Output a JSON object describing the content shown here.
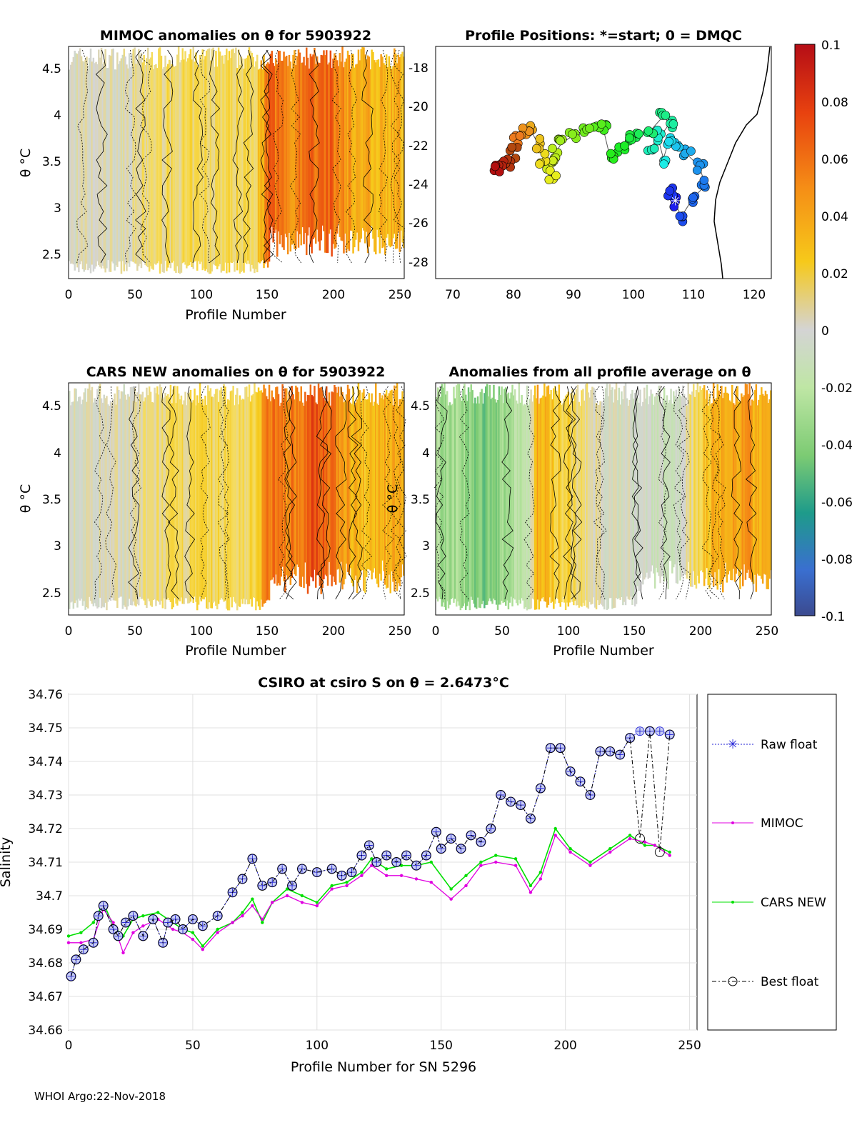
{
  "footer": "WHOI Argo:22-Nov-2018",
  "colorbar": {
    "ticks": [
      "0.1",
      "0.08",
      "0.06",
      "0.04",
      "0.02",
      "0",
      "-0.02",
      "-0.04",
      "-0.06",
      "-0.08",
      "-0.1"
    ],
    "range": [
      -0.1,
      0.1
    ]
  },
  "panels": {
    "mimoc": {
      "title": "MIMOC anomalies on θ  for 5903922",
      "ylabel": "θ °C",
      "xlabel": "Profile Number",
      "xticks": [
        "0",
        "50",
        "100",
        "150",
        "200",
        "250"
      ],
      "yticks": [
        "4.5",
        "4",
        "3.5",
        "3",
        "2.5"
      ]
    },
    "positions": {
      "title": "Profile Positions: *=start; 0 = DMQC",
      "xticks": [
        "70",
        "80",
        "90",
        "100",
        "110",
        "120"
      ],
      "yticks": [
        "-18",
        "-20",
        "-22",
        "-24",
        "-26",
        "-28"
      ]
    },
    "cars": {
      "title": "CARS NEW anomalies on θ for 5903922",
      "ylabel": "θ °C",
      "xlabel": "Profile Number",
      "xticks": [
        "0",
        "50",
        "100",
        "150",
        "200",
        "250"
      ],
      "yticks": [
        "4.5",
        "4",
        "3.5",
        "3",
        "2.5"
      ]
    },
    "avg": {
      "title": "Anomalies from all profile average on θ",
      "ylabel": "θ °C",
      "xlabel": "Profile Number",
      "xticks": [
        "0",
        "50",
        "100",
        "150",
        "200",
        "250"
      ],
      "yticks": [
        "4.5",
        "4",
        "3.5",
        "3",
        "2.5"
      ]
    }
  },
  "colors": {
    "raw": "#1f1fd6",
    "mimoc": "#e000e0",
    "cars": "#00e000",
    "best": "#000000"
  },
  "chart_data": [
    {
      "type": "heatmap",
      "title": "MIMOC anomalies on θ  for 5903922",
      "xlabel": "Profile Number",
      "ylabel": "θ °C",
      "xlim": [
        0,
        253
      ],
      "ylim": [
        2.25,
        4.75
      ],
      "column_anomaly_profile": [
        [
          0,
          0.0
        ],
        [
          40,
          0.003
        ],
        [
          60,
          0.015
        ],
        [
          100,
          0.018
        ],
        [
          140,
          0.022
        ],
        [
          150,
          0.06
        ],
        [
          170,
          0.05
        ],
        [
          190,
          0.065
        ],
        [
          215,
          0.04
        ],
        [
          253,
          0.035
        ]
      ]
    },
    {
      "type": "scatter",
      "title": "Profile Positions: *=start; 0 = DMQC",
      "xlim": [
        67,
        123
      ],
      "ylim": [
        -29,
        -17
      ],
      "track": [
        [
          107,
          -25
        ],
        [
          106,
          -24.5
        ],
        [
          108,
          -25.8
        ],
        [
          110,
          -24.8
        ],
        [
          112,
          -24.2
        ],
        [
          111,
          -23.2
        ],
        [
          109,
          -22.6
        ],
        [
          107.5,
          -22.2
        ],
        [
          106,
          -21.8
        ],
        [
          105,
          -22.8
        ],
        [
          104,
          -21.6
        ],
        [
          103,
          -22.3
        ],
        [
          106,
          -21.0
        ],
        [
          105,
          -20.6
        ],
        [
          103,
          -21.3
        ],
        [
          101,
          -21.6
        ],
        [
          99,
          -21.8
        ],
        [
          98,
          -22.2
        ],
        [
          96,
          -22.6
        ],
        [
          95,
          -21.3
        ],
        [
          94,
          -21.0
        ],
        [
          92,
          -21.3
        ],
        [
          90,
          -21.6
        ],
        [
          88,
          -22.0
        ],
        [
          87,
          -22.5
        ],
        [
          86,
          -23.2
        ],
        [
          86.5,
          -23.6
        ],
        [
          85,
          -22.8
        ],
        [
          84,
          -22.0
        ],
        [
          83,
          -21.4
        ],
        [
          82,
          -21.3
        ],
        [
          80.5,
          -21.9
        ],
        [
          80,
          -22.5
        ],
        [
          79,
          -23.1
        ],
        [
          78,
          -23.0
        ],
        [
          77,
          -23.2
        ]
      ],
      "start": [
        107,
        -25
      ]
    },
    {
      "type": "heatmap",
      "title": "CARS NEW anomalies on θ for 5903922",
      "xlabel": "Profile Number",
      "ylabel": "θ °C",
      "xlim": [
        0,
        253
      ],
      "ylim": [
        2.25,
        4.75
      ],
      "column_anomaly_profile": [
        [
          0,
          0.0
        ],
        [
          40,
          0.002
        ],
        [
          60,
          0.012
        ],
        [
          100,
          0.02
        ],
        [
          140,
          0.02
        ],
        [
          150,
          0.06
        ],
        [
          165,
          0.05
        ],
        [
          185,
          0.07
        ],
        [
          215,
          0.035
        ],
        [
          253,
          0.04
        ]
      ]
    },
    {
      "type": "heatmap",
      "title": "Anomalies from all profile average on θ",
      "xlabel": "Profile Number",
      "ylabel": "θ °C",
      "xlim": [
        0,
        253
      ],
      "ylim": [
        2.25,
        4.75
      ],
      "column_anomaly_profile": [
        [
          0,
          -0.025
        ],
        [
          40,
          -0.04
        ],
        [
          70,
          -0.012
        ],
        [
          75,
          0.04
        ],
        [
          130,
          0.0
        ],
        [
          180,
          -0.01
        ],
        [
          195,
          0.02
        ],
        [
          205,
          0.035
        ],
        [
          230,
          0.045
        ],
        [
          253,
          0.035
        ]
      ]
    },
    {
      "type": "line",
      "title": "CSIRO at csiro S on θ = 2.6473°C",
      "xlabel": "Profile Number for SN 5296",
      "ylabel": "Salinity",
      "xlim": [
        0,
        253
      ],
      "ylim": [
        34.66,
        34.76
      ],
      "xticks": [
        "0",
        "50",
        "100",
        "150",
        "200",
        "250"
      ],
      "yticks": [
        "34.66",
        "34.67",
        "34.68",
        "34.69",
        "34.7",
        "34.71",
        "34.72",
        "34.73",
        "34.74",
        "34.75",
        "34.76"
      ],
      "series": [
        {
          "name": "Raw float",
          "x": [
            1,
            3,
            6,
            10,
            12,
            14,
            18,
            20,
            23,
            26,
            30,
            34,
            38,
            40,
            43,
            46,
            50,
            54,
            60,
            66,
            70,
            74,
            78,
            82,
            86,
            90,
            94,
            100,
            106,
            110,
            114,
            118,
            121,
            124,
            128,
            132,
            136,
            140,
            144,
            148,
            150,
            154,
            158,
            162,
            166,
            170,
            174,
            178,
            182,
            186,
            190,
            194,
            198,
            202,
            206,
            210,
            214,
            218,
            222,
            226,
            230,
            234,
            238,
            242
          ],
          "values": [
            34.676,
            34.681,
            34.684,
            34.686,
            34.694,
            34.697,
            34.69,
            34.688,
            34.692,
            34.694,
            34.688,
            34.693,
            34.686,
            34.692,
            34.693,
            34.69,
            34.693,
            34.691,
            34.694,
            34.701,
            34.705,
            34.711,
            34.703,
            34.704,
            34.708,
            34.703,
            34.708,
            34.707,
            34.708,
            34.706,
            34.707,
            34.712,
            34.715,
            34.71,
            34.712,
            34.71,
            34.712,
            34.709,
            34.712,
            34.719,
            34.714,
            34.717,
            34.714,
            34.718,
            34.716,
            34.72,
            34.73,
            34.728,
            34.727,
            34.723,
            34.732,
            34.744,
            34.744,
            34.737,
            34.734,
            34.73,
            34.743,
            34.743,
            34.742,
            34.747,
            34.749,
            34.749,
            34.749,
            34.748
          ]
        },
        {
          "name": "MIMOC",
          "x": [
            0,
            5,
            10,
            14,
            18,
            22,
            26,
            30,
            36,
            42,
            46,
            50,
            54,
            60,
            66,
            70,
            74,
            78,
            82,
            88,
            94,
            100,
            106,
            112,
            118,
            122,
            128,
            134,
            140,
            146,
            154,
            160,
            166,
            172,
            180,
            186,
            190,
            196,
            202,
            210,
            218,
            226,
            232,
            236,
            242
          ],
          "values": [
            34.686,
            34.686,
            34.687,
            34.696,
            34.692,
            34.683,
            34.689,
            34.691,
            34.693,
            34.69,
            34.689,
            34.687,
            34.684,
            34.689,
            34.692,
            34.694,
            34.697,
            34.693,
            34.698,
            34.7,
            34.698,
            34.697,
            34.702,
            34.703,
            34.706,
            34.709,
            34.706,
            34.706,
            34.705,
            34.704,
            34.699,
            34.703,
            34.709,
            34.71,
            34.709,
            34.701,
            34.705,
            34.718,
            34.713,
            34.709,
            34.713,
            34.717,
            34.716,
            34.715,
            34.712
          ]
        },
        {
          "name": "CARS NEW",
          "x": [
            0,
            5,
            10,
            14,
            18,
            22,
            26,
            30,
            36,
            42,
            46,
            50,
            54,
            60,
            66,
            70,
            74,
            78,
            82,
            88,
            94,
            100,
            106,
            112,
            118,
            122,
            128,
            134,
            140,
            146,
            154,
            160,
            166,
            172,
            180,
            186,
            190,
            196,
            202,
            210,
            218,
            226,
            232,
            236,
            242
          ],
          "values": [
            34.688,
            34.689,
            34.692,
            34.698,
            34.691,
            34.688,
            34.693,
            34.694,
            34.695,
            34.692,
            34.69,
            34.689,
            34.685,
            34.69,
            34.692,
            34.695,
            34.699,
            34.692,
            34.698,
            34.702,
            34.7,
            34.698,
            34.703,
            34.704,
            34.707,
            34.711,
            34.708,
            34.709,
            34.709,
            34.71,
            34.702,
            34.706,
            34.71,
            34.712,
            34.711,
            34.703,
            34.707,
            34.72,
            34.714,
            34.71,
            34.714,
            34.718,
            34.715,
            34.715,
            34.713
          ]
        },
        {
          "name": "Best float",
          "x": [
            1,
            3,
            6,
            10,
            12,
            14,
            18,
            20,
            23,
            26,
            30,
            34,
            38,
            40,
            43,
            46,
            50,
            54,
            60,
            66,
            70,
            74,
            78,
            82,
            86,
            90,
            94,
            100,
            106,
            110,
            114,
            118,
            121,
            124,
            128,
            132,
            136,
            140,
            144,
            148,
            150,
            154,
            158,
            162,
            166,
            170,
            174,
            178,
            182,
            186,
            190,
            194,
            198,
            202,
            206,
            210,
            214,
            218,
            222,
            226,
            230,
            234,
            238,
            242
          ],
          "values": [
            34.676,
            34.681,
            34.684,
            34.686,
            34.694,
            34.697,
            34.69,
            34.688,
            34.692,
            34.694,
            34.688,
            34.693,
            34.686,
            34.692,
            34.693,
            34.69,
            34.693,
            34.691,
            34.694,
            34.701,
            34.705,
            34.711,
            34.703,
            34.704,
            34.708,
            34.703,
            34.708,
            34.707,
            34.708,
            34.706,
            34.707,
            34.712,
            34.715,
            34.71,
            34.712,
            34.71,
            34.712,
            34.709,
            34.712,
            34.719,
            34.714,
            34.717,
            34.714,
            34.718,
            34.716,
            34.72,
            34.73,
            34.728,
            34.727,
            34.723,
            34.732,
            34.744,
            34.744,
            34.737,
            34.734,
            34.73,
            34.743,
            34.743,
            34.742,
            34.747,
            34.717,
            34.749,
            34.713,
            34.748
          ]
        }
      ]
    }
  ]
}
